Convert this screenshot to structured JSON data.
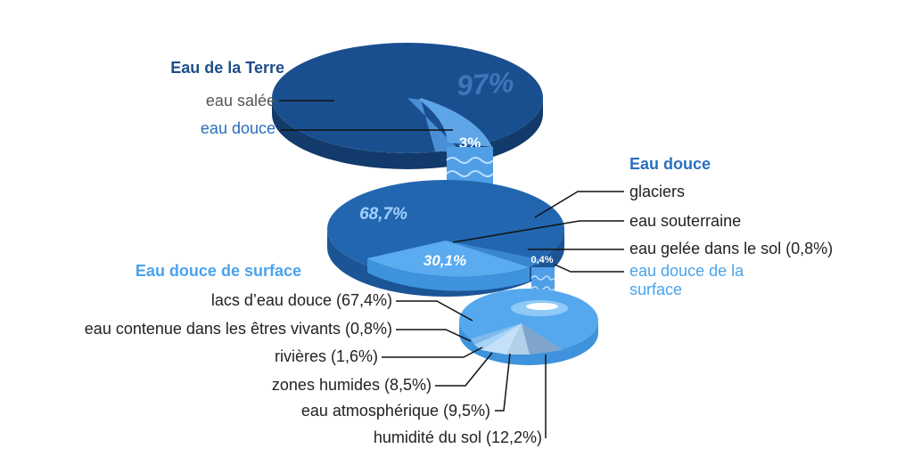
{
  "colors": {
    "salt_dark": "#1a4f8f",
    "salt_side": "#143f73",
    "mid_blue": "#2266b0",
    "mid_side": "#1b5596",
    "light_blue": "#5aabef",
    "light_side": "#3e93dc",
    "label_grey": "#555555",
    "label_dark": "#222222",
    "title_dark": "#1f4e8a",
    "title_mid": "#2a6fbe",
    "title_light": "#4aa3ec"
  },
  "chart_data": [
    {
      "type": "pie",
      "title": "Eau de la Terre",
      "series": [
        {
          "name": "eau salée",
          "value": 97,
          "label": "97%"
        },
        {
          "name": "eau douce",
          "value": 3,
          "label": "3%"
        }
      ]
    },
    {
      "type": "pie",
      "title": "Eau douce",
      "series": [
        {
          "name": "glaciers",
          "value": 68.7,
          "label": "68,7%"
        },
        {
          "name": "eau souterraine",
          "value": 30.1,
          "label": "30,1%"
        },
        {
          "name": "eau gelée dans le sol (0,8%)",
          "value": 0.8,
          "label": ""
        },
        {
          "name": "eau douce de la surface",
          "value": 0.4,
          "label": "0,4%"
        }
      ]
    },
    {
      "type": "pie",
      "title": "Eau douce de surface",
      "series": [
        {
          "name": "lacs d’eau douce (67,4%)",
          "value": 67.4
        },
        {
          "name": "eau contenue dans les êtres vivants (0,8%)",
          "value": 0.8
        },
        {
          "name": "rivières (1,6%)",
          "value": 1.6
        },
        {
          "name": "zones humides (8,5%)",
          "value": 8.5
        },
        {
          "name": "eau atmosphérique (9,5%)",
          "value": 9.5
        },
        {
          "name": "humidité du sol (12,2%)",
          "value": 12.2
        }
      ]
    }
  ],
  "labels": {
    "earth_title": "Eau de la Terre",
    "salt": "eau salée",
    "fresh": "eau douce",
    "fresh_title": "Eau douce",
    "glaciers": "glaciers",
    "ground": "eau souterraine",
    "frozen": "eau gelée dans le sol (0,8%)",
    "surface_line1": "eau douce de la",
    "surface_line2": "surface",
    "surface_title": "Eau douce de surface",
    "lakes": "lacs d’eau douce (67,4%)",
    "living": "eau contenue dans les êtres vivants (0,8%)",
    "rivers": "rivières (1,6%)",
    "wetlands": "zones humides (8,5%)",
    "atmo": "eau atmosphérique (9,5%)",
    "soil": "humidité du sol (12,2%)"
  }
}
